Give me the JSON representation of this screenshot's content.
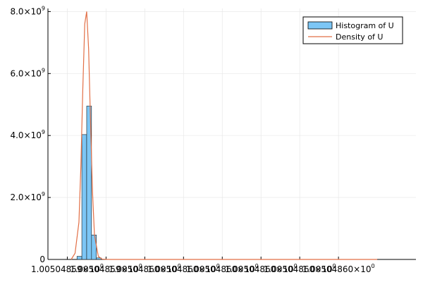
{
  "chart_data": {
    "type": "histogram",
    "grid": true,
    "legend": {
      "placement": "top-right"
    },
    "ylim": [
      0,
      8100000000.0
    ],
    "xlim": [
      1.005048586,
      1.005048605
    ],
    "y_ticks": [
      {
        "value": 0,
        "label": "0",
        "exp": ""
      },
      {
        "value": 2000000000.0,
        "label": "2.0×10",
        "exp": "9"
      },
      {
        "value": 4000000000.0,
        "label": "4.0×10",
        "exp": "9"
      },
      {
        "value": 6000000000.0,
        "label": "6.0×10",
        "exp": "9"
      },
      {
        "value": 8000000000.0,
        "label": "8.0×10",
        "exp": "9"
      }
    ],
    "x_ticks": [
      {
        "value": 1.005048587,
        "label": "1.00504859×10",
        "exp": "0"
      },
      {
        "value": 1.005048589,
        "label": "1.00504859×10",
        "exp": "0"
      },
      {
        "value": 1.005048591,
        "label": "1.00504860×10",
        "exp": "0"
      },
      {
        "value": 1.005048593,
        "label": "1.00504860×10",
        "exp": "0"
      },
      {
        "value": 1.005048595,
        "label": "1.00504860×10",
        "exp": "0"
      },
      {
        "value": 1.005048597,
        "label": "1.00504860×10",
        "exp": "0"
      },
      {
        "value": 1.005048599,
        "label": "1.00504860×10",
        "exp": "0"
      },
      {
        "value": 1.005048601,
        "label": "1.00504860×10",
        "exp": "0"
      }
    ],
    "series": [
      {
        "name": "Histogram of U",
        "kind": "histogram",
        "color": "#7cc6f5",
        "bins": [
          {
            "start": 1.0050485875,
            "end": 1.00504858775,
            "value": 100000000.0
          },
          {
            "start": 1.00504858775,
            "end": 1.005048588,
            "value": 4030000000.0
          },
          {
            "start": 1.005048588,
            "end": 1.00504858825,
            "value": 4950000000.0
          },
          {
            "start": 1.00504858825,
            "end": 1.0050485885,
            "value": 790000000.0
          },
          {
            "start": 1.0050485885,
            "end": 1.00504858875,
            "value": 50000000.0
          }
        ]
      },
      {
        "name": "Density of U",
        "kind": "line",
        "color": "#e26f46",
        "x": [
          1.0050485872,
          1.0050485874,
          1.0050485876,
          1.0050485877,
          1.0050485878,
          1.0050485879,
          1.005048588,
          1.0050485881,
          1.0050485882,
          1.0050485883,
          1.0050485884,
          1.0050485886,
          1.0050485888,
          1.0050485892,
          1.00504859,
          1.005048592,
          1.005048595,
          1.005048598,
          1.005048601,
          1.005048603
        ],
        "y": [
          0,
          200000000.0,
          1200000000.0,
          3000000000.0,
          5500000000.0,
          7600000000.0,
          8000000000.0,
          6800000000.0,
          4400000000.0,
          2200000000.0,
          800000000.0,
          100000000.0,
          10000000.0,
          0,
          0,
          0,
          0,
          0,
          0,
          0
        ]
      }
    ]
  }
}
